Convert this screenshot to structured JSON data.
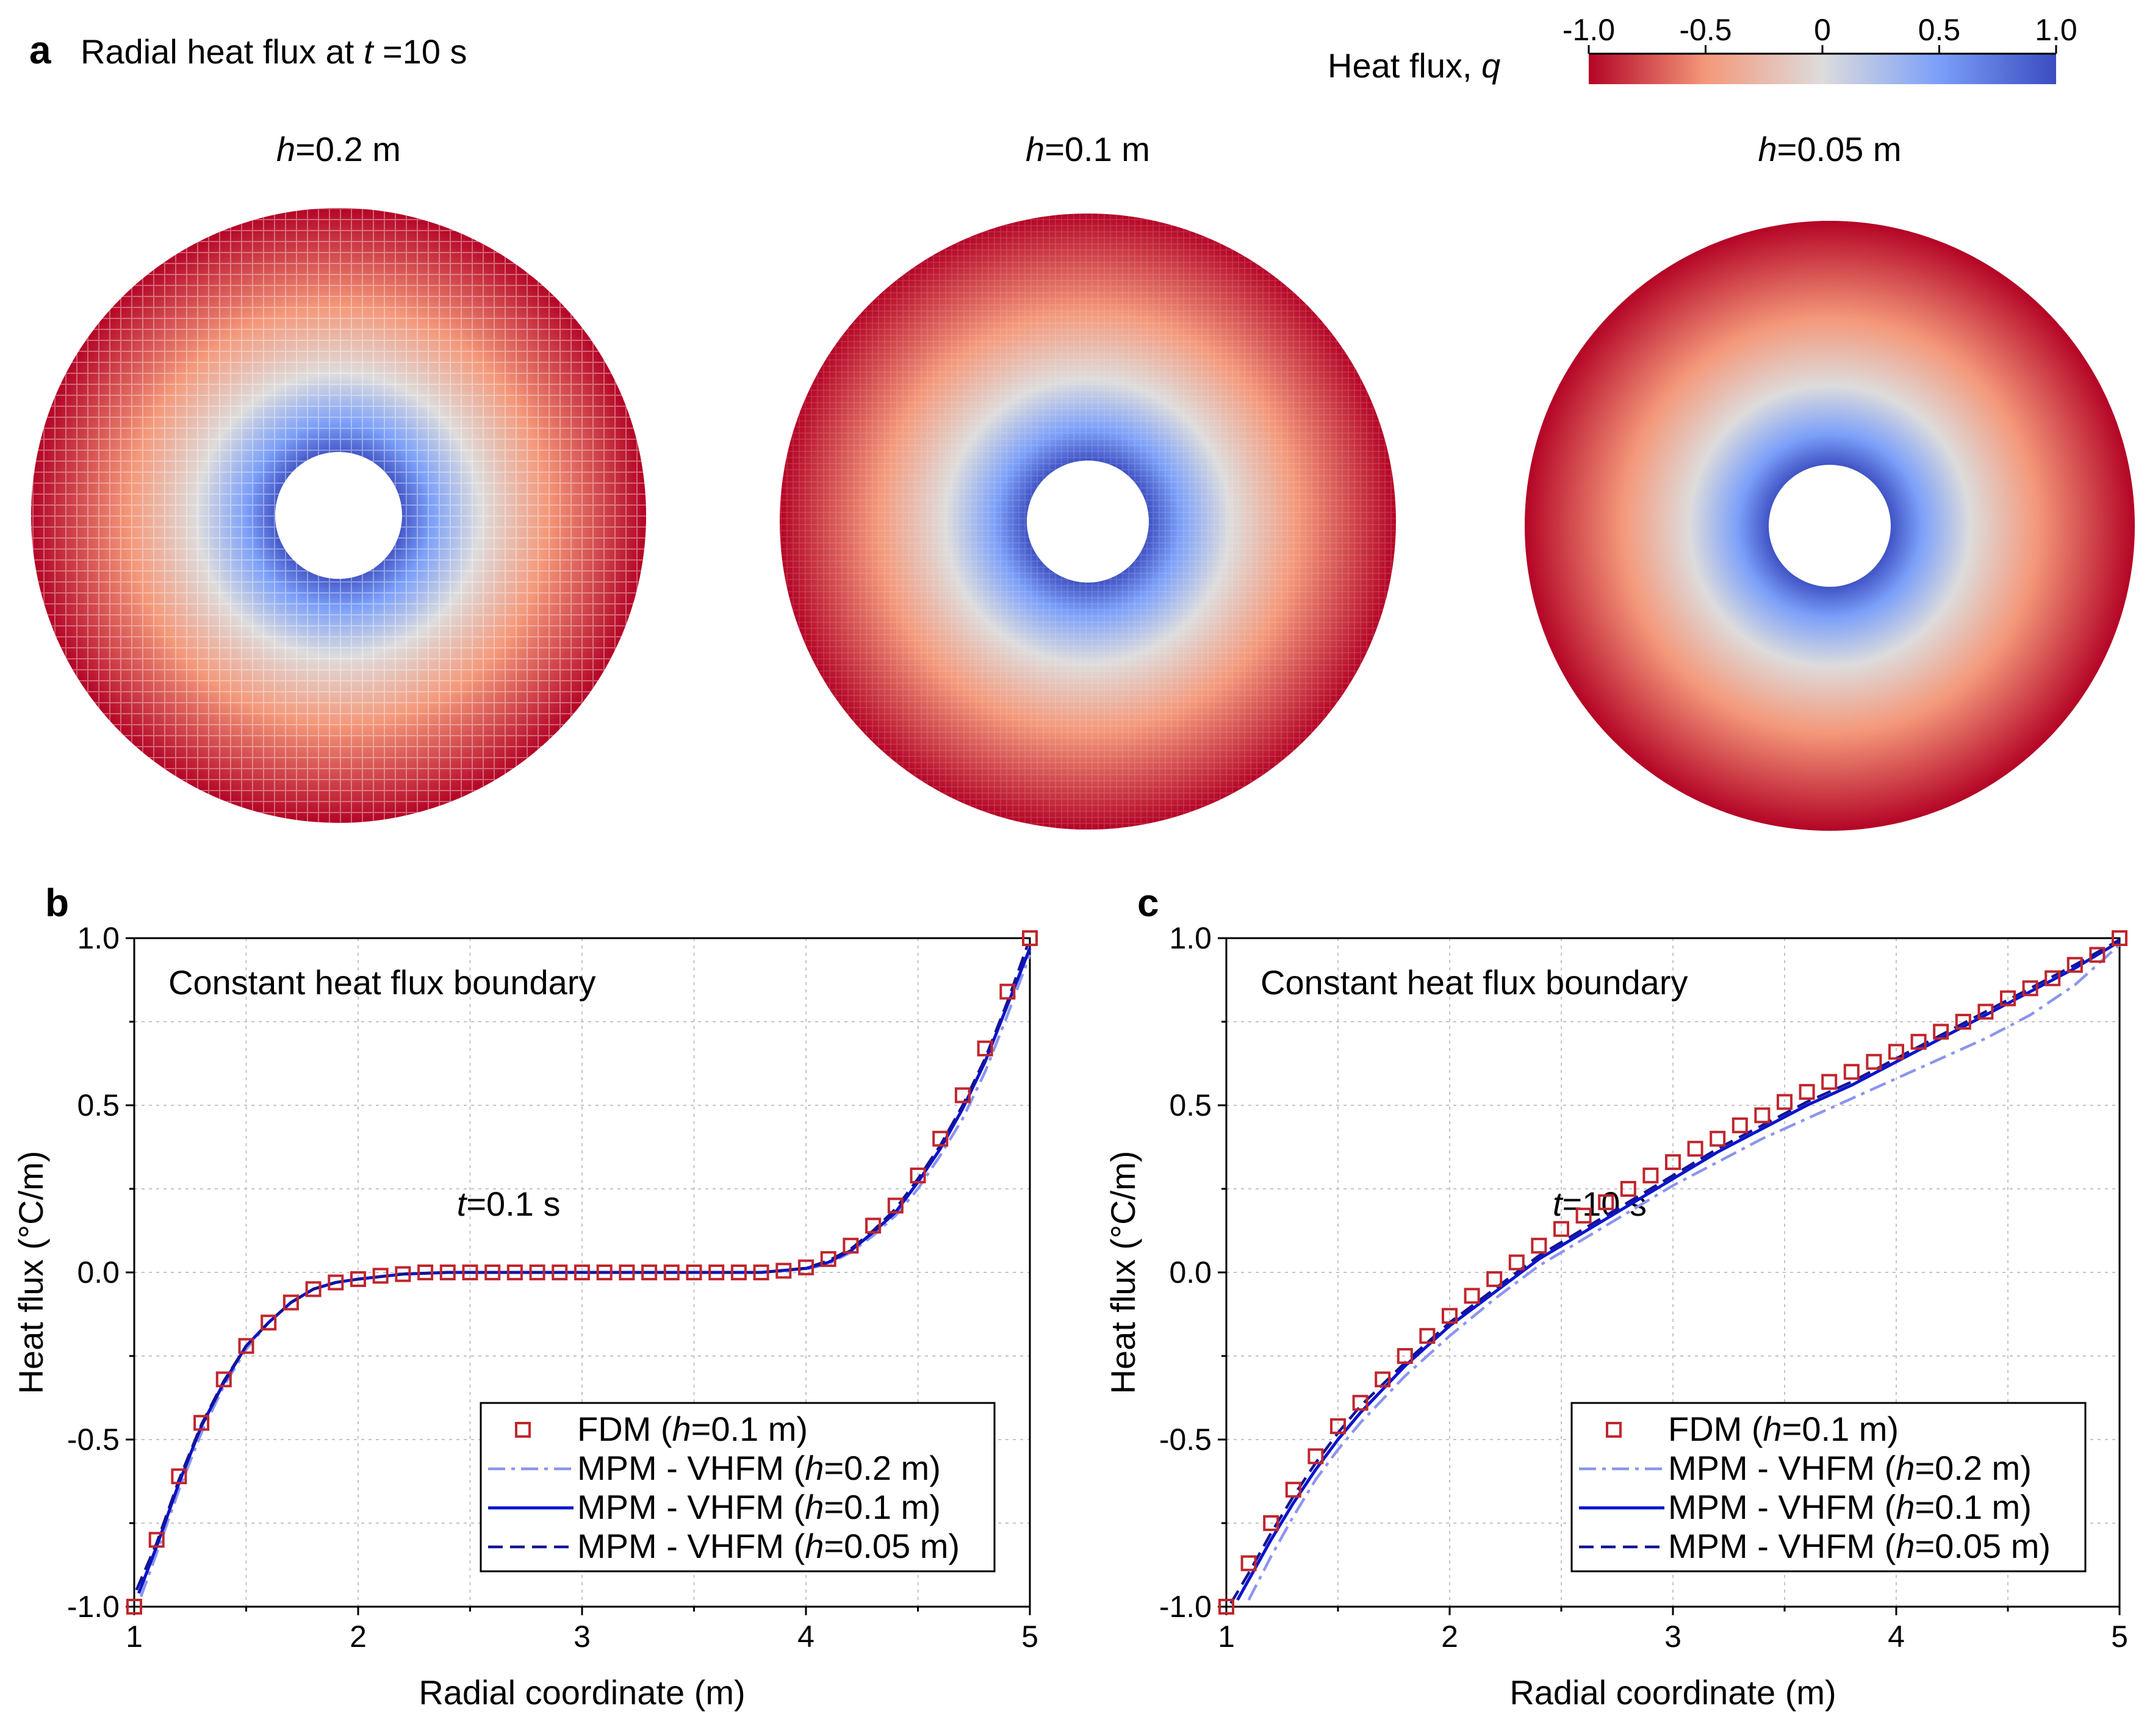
{
  "panel_a": {
    "letter": "a",
    "title_prefix": "Radial heat flux at ",
    "title_var": "t",
    "title_suffix": " =10 s",
    "colorbar": {
      "label_prefix": "Heat flux, ",
      "label_var": "q",
      "ticks": [
        "-1.0",
        "-0.5",
        "0",
        "0.5",
        "1.0"
      ],
      "tick_values": [
        -1.0,
        -0.5,
        0,
        0.5,
        1.0
      ],
      "colors": [
        "#b40426",
        "#f4987a",
        "#dddcdc",
        "#7b9ff9",
        "#3b4cc0"
      ]
    },
    "rings": [
      {
        "label_var": "h",
        "label_rest": "=0.2 m"
      },
      {
        "label_var": "h",
        "label_rest": "=0.1 m"
      },
      {
        "label_var": "h",
        "label_rest": "=0.05 m"
      }
    ]
  },
  "chart_data": [
    {
      "panel": "b",
      "type": "line",
      "annotation": "Constant heat flux boundary",
      "time_var": "t",
      "time_rest": "=0.1 s",
      "xlabel": "Radial coordinate (m)",
      "ylabel": "Heat flux (°C/m)",
      "xlim": [
        1,
        5
      ],
      "ylim": [
        -1.0,
        1.0
      ],
      "xticks": [
        "1",
        "2",
        "3",
        "4",
        "5"
      ],
      "xtick_values": [
        1,
        2,
        3,
        4,
        5
      ],
      "yticks": [
        "-1.0",
        "-0.5",
        "0.0",
        "0.5",
        "1.0"
      ],
      "ytick_values": [
        -1.0,
        -0.5,
        0.0,
        0.5,
        1.0
      ],
      "series": [
        {
          "name_prefix": "FDM (",
          "name_var": "h",
          "name_rest": "=0.1 m)",
          "style": "markers",
          "color": "#c0262d",
          "x": [
            1.0,
            1.1,
            1.2,
            1.3,
            1.4,
            1.5,
            1.6,
            1.7,
            1.8,
            1.9,
            2.0,
            2.1,
            2.2,
            2.3,
            2.4,
            2.5,
            2.6,
            2.7,
            2.8,
            2.9,
            3.0,
            3.1,
            3.2,
            3.3,
            3.4,
            3.5,
            3.6,
            3.7,
            3.8,
            3.9,
            4.0,
            4.1,
            4.2,
            4.3,
            4.4,
            4.5,
            4.6,
            4.7,
            4.8,
            4.9,
            5.0
          ],
          "y": [
            -1.0,
            -0.8,
            -0.61,
            -0.45,
            -0.32,
            -0.22,
            -0.15,
            -0.09,
            -0.05,
            -0.03,
            -0.02,
            -0.01,
            -0.005,
            0.0,
            0.0,
            0.0,
            0.0,
            0.0,
            0.0,
            0.0,
            0.0,
            0.0,
            0.0,
            0.0,
            0.0,
            0.0,
            0.0,
            0.0,
            0.0,
            0.005,
            0.015,
            0.04,
            0.08,
            0.14,
            0.2,
            0.29,
            0.4,
            0.53,
            0.67,
            0.84,
            1.0
          ]
        },
        {
          "name_prefix": "MPM - VHFM (",
          "name_var": "h",
          "name_rest": "=0.2 m)",
          "style": "dashdot",
          "color": "#8c95ec",
          "x": [
            1.03,
            1.1,
            1.2,
            1.3,
            1.4,
            1.5,
            1.6,
            1.7,
            1.8,
            1.9,
            2.0,
            2.2,
            2.4,
            2.6,
            2.8,
            3.0,
            3.2,
            3.4,
            3.6,
            3.8,
            4.0,
            4.1,
            4.2,
            4.3,
            4.4,
            4.5,
            4.6,
            4.7,
            4.8,
            4.9,
            5.0
          ],
          "y": [
            -0.97,
            -0.84,
            -0.65,
            -0.48,
            -0.34,
            -0.23,
            -0.15,
            -0.09,
            -0.05,
            -0.03,
            -0.02,
            -0.005,
            0.0,
            0.0,
            0.0,
            0.0,
            0.0,
            0.0,
            0.0,
            0.0,
            0.01,
            0.025,
            0.06,
            0.11,
            0.17,
            0.25,
            0.35,
            0.46,
            0.6,
            0.77,
            0.95
          ]
        },
        {
          "name_prefix": "MPM - VHFM (",
          "name_var": "h",
          "name_rest": "=0.1 m)",
          "style": "solid",
          "color": "#0a14cc",
          "x": [
            1.02,
            1.1,
            1.2,
            1.3,
            1.4,
            1.5,
            1.6,
            1.7,
            1.8,
            1.9,
            2.0,
            2.2,
            2.4,
            2.6,
            2.8,
            3.0,
            3.2,
            3.4,
            3.6,
            3.8,
            4.0,
            4.1,
            4.2,
            4.3,
            4.4,
            4.5,
            4.6,
            4.7,
            4.8,
            4.9,
            5.0
          ],
          "y": [
            -0.96,
            -0.82,
            -0.63,
            -0.46,
            -0.33,
            -0.22,
            -0.15,
            -0.09,
            -0.05,
            -0.03,
            -0.02,
            -0.005,
            0.0,
            0.0,
            0.0,
            0.0,
            0.0,
            0.0,
            0.0,
            0.0,
            0.012,
            0.03,
            0.065,
            0.12,
            0.18,
            0.27,
            0.37,
            0.49,
            0.63,
            0.8,
            0.97
          ]
        },
        {
          "name_prefix": "MPM - VHFM (",
          "name_var": "h",
          "name_rest": "=0.05 m)",
          "style": "dashed",
          "color": "#141494",
          "x": [
            1.01,
            1.1,
            1.2,
            1.3,
            1.4,
            1.5,
            1.6,
            1.7,
            1.8,
            1.9,
            2.0,
            2.2,
            2.4,
            2.6,
            2.8,
            3.0,
            3.2,
            3.4,
            3.6,
            3.8,
            4.0,
            4.1,
            4.2,
            4.3,
            4.4,
            4.5,
            4.6,
            4.7,
            4.8,
            4.9,
            4.99
          ],
          "y": [
            -0.95,
            -0.81,
            -0.62,
            -0.455,
            -0.325,
            -0.22,
            -0.15,
            -0.09,
            -0.05,
            -0.03,
            -0.02,
            -0.005,
            0.0,
            0.0,
            0.0,
            0.0,
            0.0,
            0.0,
            0.0,
            0.0,
            0.013,
            0.035,
            0.07,
            0.125,
            0.19,
            0.28,
            0.38,
            0.5,
            0.64,
            0.81,
            0.98
          ]
        }
      ]
    },
    {
      "panel": "c",
      "type": "line",
      "annotation": "Constant heat flux boundary",
      "time_var": "t",
      "time_rest": "=10 s",
      "xlabel": "Radial coordinate (m)",
      "ylabel": "Heat flux (°C/m)",
      "xlim": [
        1,
        5
      ],
      "ylim": [
        -1.0,
        1.0
      ],
      "xticks": [
        "1",
        "2",
        "3",
        "4",
        "5"
      ],
      "xtick_values": [
        1,
        2,
        3,
        4,
        5
      ],
      "yticks": [
        "-1.0",
        "-0.5",
        "0.0",
        "0.5",
        "1.0"
      ],
      "ytick_values": [
        -1.0,
        -0.5,
        0.0,
        0.5,
        1.0
      ],
      "series": [
        {
          "name_prefix": "FDM (",
          "name_var": "h",
          "name_rest": "=0.1 m)",
          "style": "markers",
          "color": "#c0262d",
          "x": [
            1.0,
            1.1,
            1.2,
            1.3,
            1.4,
            1.5,
            1.6,
            1.7,
            1.8,
            1.9,
            2.0,
            2.1,
            2.2,
            2.3,
            2.4,
            2.5,
            2.6,
            2.7,
            2.8,
            2.9,
            3.0,
            3.1,
            3.2,
            3.3,
            3.4,
            3.5,
            3.6,
            3.7,
            3.8,
            3.9,
            4.0,
            4.1,
            4.2,
            4.3,
            4.4,
            4.5,
            4.6,
            4.7,
            4.8,
            4.9,
            5.0
          ],
          "y": [
            -1.0,
            -0.87,
            -0.75,
            -0.65,
            -0.55,
            -0.46,
            -0.39,
            -0.32,
            -0.25,
            -0.19,
            -0.13,
            -0.07,
            -0.02,
            0.03,
            0.08,
            0.13,
            0.17,
            0.21,
            0.25,
            0.29,
            0.33,
            0.37,
            0.4,
            0.44,
            0.47,
            0.51,
            0.54,
            0.57,
            0.6,
            0.63,
            0.66,
            0.69,
            0.72,
            0.75,
            0.78,
            0.82,
            0.85,
            0.88,
            0.92,
            0.95,
            1.0
          ]
        },
        {
          "name_prefix": "MPM - VHFM (",
          "name_var": "h",
          "name_rest": "=0.2 m)",
          "style": "dashdot",
          "color": "#8c95ec",
          "x": [
            1.1,
            1.2,
            1.3,
            1.4,
            1.5,
            1.6,
            1.8,
            2.0,
            2.2,
            2.4,
            2.6,
            2.8,
            3.0,
            3.2,
            3.4,
            3.6,
            3.8,
            4.0,
            4.2,
            4.4,
            4.6,
            4.8,
            5.0
          ],
          "y": [
            -0.98,
            -0.85,
            -0.73,
            -0.62,
            -0.53,
            -0.45,
            -0.31,
            -0.19,
            -0.08,
            0.02,
            0.1,
            0.18,
            0.26,
            0.33,
            0.4,
            0.46,
            0.52,
            0.58,
            0.64,
            0.7,
            0.77,
            0.86,
            0.98
          ]
        },
        {
          "name_prefix": "MPM - VHFM (",
          "name_var": "h",
          "name_rest": "=0.1 m)",
          "style": "solid",
          "color": "#0a14cc",
          "x": [
            1.05,
            1.1,
            1.2,
            1.3,
            1.4,
            1.5,
            1.6,
            1.8,
            2.0,
            2.2,
            2.4,
            2.6,
            2.8,
            3.0,
            3.2,
            3.4,
            3.6,
            3.8,
            4.0,
            4.2,
            4.4,
            4.6,
            4.8,
            5.0
          ],
          "y": [
            -0.98,
            -0.92,
            -0.8,
            -0.69,
            -0.59,
            -0.5,
            -0.42,
            -0.28,
            -0.16,
            -0.06,
            0.04,
            0.12,
            0.2,
            0.28,
            0.36,
            0.43,
            0.5,
            0.56,
            0.63,
            0.7,
            0.77,
            0.84,
            0.91,
            0.99
          ]
        },
        {
          "name_prefix": "MPM - VHFM (",
          "name_var": "h",
          "name_rest": "=0.05 m)",
          "style": "dashed",
          "color": "#141494",
          "x": [
            1.02,
            1.1,
            1.2,
            1.3,
            1.4,
            1.5,
            1.6,
            1.8,
            2.0,
            2.2,
            2.4,
            2.6,
            2.8,
            3.0,
            3.2,
            3.4,
            3.6,
            3.8,
            4.0,
            4.2,
            4.4,
            4.6,
            4.8,
            5.0
          ],
          "y": [
            -0.99,
            -0.9,
            -0.78,
            -0.67,
            -0.57,
            -0.48,
            -0.4,
            -0.27,
            -0.15,
            -0.05,
            0.05,
            0.13,
            0.21,
            0.29,
            0.37,
            0.44,
            0.51,
            0.57,
            0.64,
            0.71,
            0.78,
            0.85,
            0.92,
            0.995
          ]
        }
      ]
    }
  ]
}
